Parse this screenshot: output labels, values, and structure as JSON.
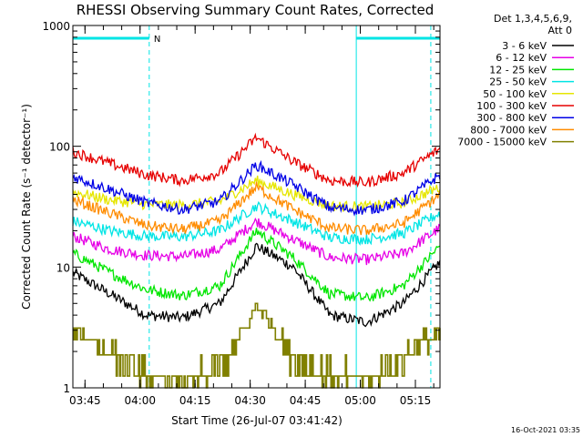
{
  "chart_data": {
    "type": "line",
    "title": "RHESSI Observing Summary Count Rates, Corrected",
    "xlabel": "Start Time (26-Jul-07 03:41:42)",
    "ylabel": "Corrected Count Rate (s⁻¹ detector⁻¹)",
    "y_scale": "log",
    "ylim": [
      1,
      1000
    ],
    "x_range_minutes": [
      0,
      100
    ],
    "x_ticks": [
      {
        "label": "03:45",
        "minute": 3.3
      },
      {
        "label": "04:00",
        "minute": 18.3
      },
      {
        "label": "04:15",
        "minute": 33.3
      },
      {
        "label": "04:30",
        "minute": 48.3
      },
      {
        "label": "04:45",
        "minute": 63.3
      },
      {
        "label": "05:00",
        "minute": 78.3
      },
      {
        "label": "05:15",
        "minute": 93.3
      }
    ],
    "y_ticks": [
      "1",
      "10",
      "100",
      "1000"
    ],
    "legend_header": [
      "Det 1,3,4,5,6,9,",
      "Att 0"
    ],
    "legend_placement": "right",
    "night_intervals": [
      [
        0,
        20.8
      ],
      [
        77.2,
        100
      ]
    ],
    "night_marker_lines_minutes": [
      0,
      20.8,
      77.2,
      97.5
    ],
    "saa_label": "N",
    "night_color": "#00e5e5",
    "series": [
      {
        "name": "3 - 6 keV",
        "color": "#000000",
        "x": [
          0,
          10,
          20,
          30,
          40,
          50,
          60,
          70,
          80,
          90,
          100
        ],
        "y": [
          9.0,
          6.0,
          4.0,
          3.8,
          5.0,
          15.0,
          10.0,
          4.0,
          3.5,
          5.0,
          11.0
        ]
      },
      {
        "name": "6 - 12 keV",
        "color": "#e600e6",
        "x": [
          0,
          10,
          20,
          30,
          40,
          50,
          60,
          70,
          80,
          90,
          100
        ],
        "y": [
          18.0,
          14.0,
          12.5,
          12.2,
          14.0,
          24.0,
          17.0,
          12.0,
          11.5,
          13.0,
          21.0
        ]
      },
      {
        "name": "12 - 25 keV",
        "color": "#00e600",
        "x": [
          0,
          10,
          20,
          30,
          40,
          50,
          60,
          70,
          80,
          90,
          100
        ],
        "y": [
          13.0,
          9.0,
          6.5,
          5.8,
          7.0,
          20.0,
          12.0,
          6.0,
          5.5,
          7.0,
          15.0
        ]
      },
      {
        "name": "25 - 50 keV",
        "color": "#00e5e5",
        "x": [
          0,
          10,
          20,
          30,
          40,
          50,
          60,
          70,
          80,
          90,
          100
        ],
        "y": [
          24.0,
          20.0,
          18.0,
          17.8,
          20.0,
          32.0,
          24.0,
          17.5,
          17.0,
          19.0,
          28.0
        ]
      },
      {
        "name": "50 - 100 keV",
        "color": "#e6e600",
        "x": [
          0,
          10,
          20,
          30,
          40,
          50,
          60,
          70,
          80,
          90,
          100
        ],
        "y": [
          42.0,
          36.0,
          33.0,
          32.5,
          35.0,
          52.0,
          40.0,
          32.0,
          31.5,
          34.0,
          46.0
        ]
      },
      {
        "name": "100 - 300 keV",
        "color": "#e60000",
        "x": [
          0,
          10,
          20,
          30,
          40,
          50,
          60,
          70,
          80,
          90,
          100
        ],
        "y": [
          90.0,
          72.0,
          58.0,
          52.0,
          60.0,
          118.0,
          75.0,
          52.0,
          50.0,
          60.0,
          95.0
        ]
      },
      {
        "name": "300 - 800 keV",
        "color": "#0000e6",
        "x": [
          0,
          10,
          20,
          30,
          40,
          50,
          60,
          70,
          80,
          90,
          100
        ],
        "y": [
          56.0,
          44.0,
          34.0,
          30.0,
          35.0,
          70.0,
          48.0,
          31.0,
          29.5,
          35.0,
          58.0
        ]
      },
      {
        "name": "800 - 7000 keV",
        "color": "#ff8c00",
        "x": [
          0,
          10,
          20,
          30,
          40,
          50,
          60,
          70,
          80,
          90,
          100
        ],
        "y": [
          36.0,
          28.0,
          22.0,
          20.5,
          24.0,
          46.0,
          30.0,
          21.0,
          20.0,
          23.0,
          40.0
        ]
      },
      {
        "name": "7000 - 15000 keV",
        "color": "#808000",
        "x": [
          0,
          5,
          10,
          20,
          30,
          40,
          45,
          50,
          55,
          60,
          70,
          80,
          90,
          95,
          100
        ],
        "y": [
          2.8,
          2.5,
          2.0,
          1.2,
          1.0,
          1.4,
          2.5,
          4.8,
          3.0,
          1.8,
          1.2,
          1.1,
          1.8,
          2.5,
          2.8
        ]
      }
    ]
  },
  "timestamp": "16-Oct-2021 03:35"
}
